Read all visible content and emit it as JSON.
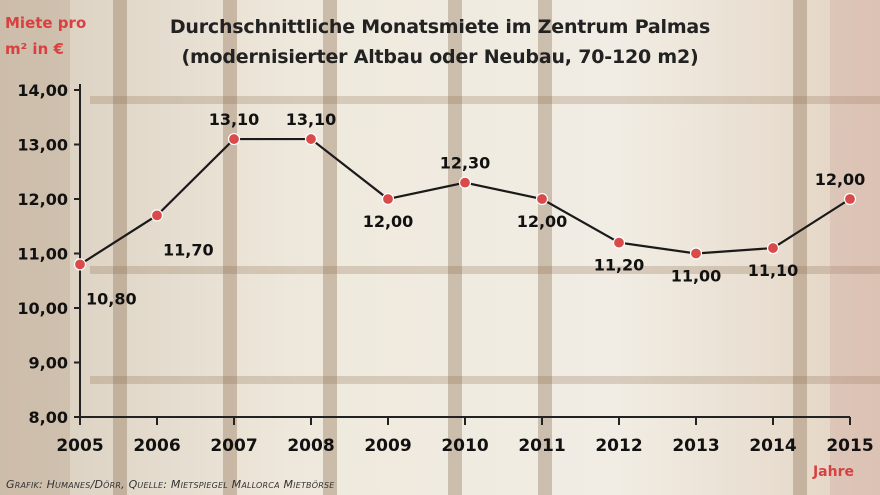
{
  "header": {
    "title_line1": "Durchschnittliche Monatsmiete im Zentrum Palmas",
    "title_line2": "(modernisierter Altbau oder Neubau, 70-120 m2)"
  },
  "axis": {
    "ylabel_line1": "Miete pro",
    "ylabel_line2": "m² in €",
    "xunit": "Jahre"
  },
  "footer": {
    "source": "Grafik: Humanes/Dörr, Quelle: Mietspiegel Mallorca Mietbörse"
  },
  "colors": {
    "line": "#1a1a1a",
    "marker": "#d94a4a",
    "ylabel": "#d94040",
    "axis": "#222222"
  },
  "chart_data": {
    "type": "line",
    "categories": [
      "2005",
      "2006",
      "2007",
      "2008",
      "2009",
      "2010",
      "2011",
      "2012",
      "2013",
      "2014",
      "2015"
    ],
    "series": [
      {
        "values": [
          10.8,
          11.7,
          13.1,
          13.1,
          12.0,
          12.3,
          12.0,
          11.2,
          11.0,
          11.1,
          12.0
        ],
        "data_labels": [
          "10,80",
          "11,70",
          "13,10",
          "13,10",
          "12,00",
          "12,30",
          "12,00",
          "11,20",
          "11,00",
          "11,10",
          "12,00"
        ]
      }
    ],
    "ylim": [
      8,
      14
    ],
    "yticks": [
      "8,00",
      "9,00",
      "10,00",
      "11,00",
      "12,00",
      "13,00",
      "14,00"
    ],
    "xlabel": "Jahre",
    "ylabel": "Miete pro m² in €",
    "title": "Durchschnittliche Monatsmiete im Zentrum Palmas (modernisierter Altbau oder Neubau, 70-120 m2)",
    "grid": false
  }
}
